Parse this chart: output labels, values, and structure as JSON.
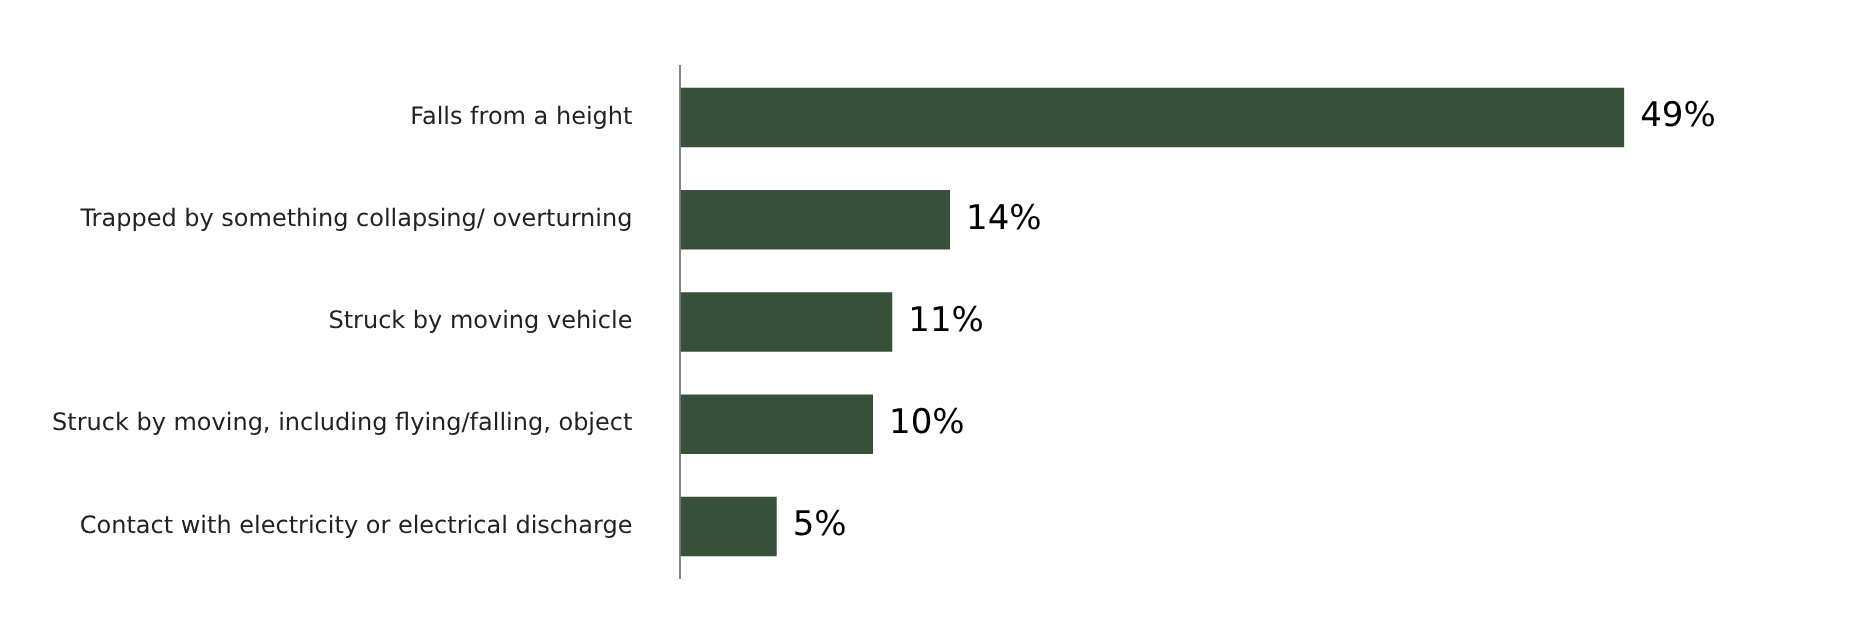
{
  "chart_data": {
    "type": "bar",
    "orientation": "horizontal",
    "value_labels": [
      "49%",
      "14%",
      "11%",
      "10%",
      "5%"
    ],
    "categories": [
      "Falls from a height",
      "Trapped by something collapsing/ overturning",
      "Struck by moving vehicle",
      "Struck by moving, including flying/falling, object",
      "Contact with electricity or electrical discharge"
    ],
    "values": [
      49,
      14,
      11,
      10,
      5
    ],
    "color": "#36503a",
    "tick_labels": "y"
  }
}
